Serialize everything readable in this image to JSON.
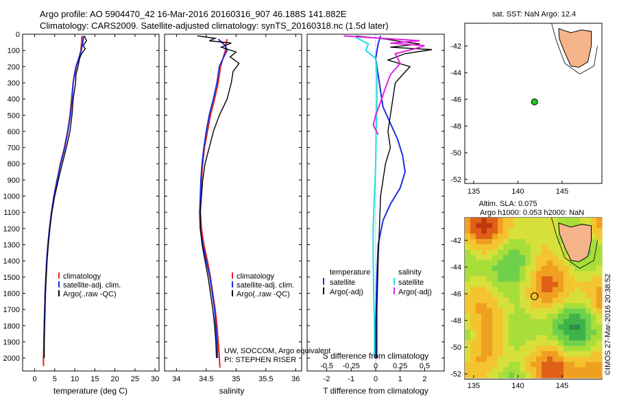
{
  "header": {
    "line1": "Argo profile: AO 5904470_42 16-Mar-2016 20160316_907 46.188S 141.882E",
    "line2": "Climatology: CARS2009. Satellite-adjusted climatology: synTS_20160318.nc (1.5d later)"
  },
  "colors": {
    "climatology": "#e8221a",
    "satellite": "#1a2de0",
    "argo": "#000000",
    "salinity_satellite": "#19e0e8",
    "salinity_argo": "#e020e0",
    "land": "#f5b48a",
    "float_marker": "#22c41e"
  },
  "chart_data": [
    {
      "type": "line",
      "name": "temperature-panel",
      "xlabel": "temperature (deg C)",
      "xticks": [
        "0",
        "5",
        "10",
        "15",
        "20",
        "25",
        "30"
      ],
      "xlim": [
        -3,
        31
      ],
      "ylim": [
        2080,
        0
      ],
      "yticks": [
        "0",
        "100",
        "200",
        "300",
        "400",
        "500",
        "600",
        "700",
        "800",
        "900",
        "1000",
        "1100",
        "1200",
        "1300",
        "1400",
        "1500",
        "1600",
        "1700",
        "1800",
        "1900",
        "2000"
      ],
      "legend": [
        "climatology",
        "satellite-adj. clim.",
        "Argo(..raw -QC)"
      ],
      "series": [
        {
          "name": "climatology",
          "color": "#e8221a",
          "points": [
            [
              11.8,
              10
            ],
            [
              11.7,
              50
            ],
            [
              11.5,
              100
            ],
            [
              11.0,
              150
            ],
            [
              10.4,
              200
            ],
            [
              10.0,
              250
            ],
            [
              9.6,
              300
            ],
            [
              9.2,
              400
            ],
            [
              8.8,
              500
            ],
            [
              8.2,
              600
            ],
            [
              7.4,
              700
            ],
            [
              6.4,
              800
            ],
            [
              5.6,
              900
            ],
            [
              4.8,
              1000
            ],
            [
              4.2,
              1100
            ],
            [
              3.7,
              1200
            ],
            [
              3.3,
              1300
            ],
            [
              3.0,
              1400
            ],
            [
              2.8,
              1500
            ],
            [
              2.6,
              1600
            ],
            [
              2.5,
              1700
            ],
            [
              2.4,
              1800
            ],
            [
              2.3,
              1900
            ],
            [
              2.2,
              2000
            ],
            [
              2.2,
              2050
            ]
          ]
        },
        {
          "name": "satellite",
          "color": "#1a2de0",
          "points": [
            [
              12.2,
              10
            ],
            [
              12.0,
              50
            ],
            [
              11.6,
              100
            ],
            [
              11.0,
              150
            ],
            [
              10.3,
              200
            ],
            [
              9.9,
              250
            ],
            [
              9.6,
              300
            ],
            [
              9.3,
              400
            ],
            [
              8.9,
              500
            ],
            [
              8.3,
              600
            ],
            [
              7.5,
              700
            ],
            [
              6.5,
              800
            ],
            [
              5.6,
              900
            ],
            [
              4.8,
              1000
            ],
            [
              4.2,
              1100
            ],
            [
              3.7,
              1200
            ],
            [
              3.3,
              1300
            ],
            [
              3.0,
              1400
            ],
            [
              2.8,
              1500
            ],
            [
              2.6,
              1600
            ],
            [
              2.5,
              1700
            ],
            [
              2.4,
              1800
            ],
            [
              2.3,
              1900
            ],
            [
              2.3,
              2000
            ]
          ]
        },
        {
          "name": "argo",
          "color": "#000000",
          "points": [
            [
              12.4,
              10
            ],
            [
              12.9,
              40
            ],
            [
              12.1,
              70
            ],
            [
              12.6,
              90
            ],
            [
              11.7,
              120
            ],
            [
              11.2,
              150
            ],
            [
              10.8,
              200
            ],
            [
              10.3,
              250
            ],
            [
              10.2,
              300
            ],
            [
              9.9,
              350
            ],
            [
              9.6,
              400
            ],
            [
              9.3,
              500
            ],
            [
              8.8,
              600
            ],
            [
              7.9,
              700
            ],
            [
              6.9,
              800
            ],
            [
              5.9,
              900
            ],
            [
              5.0,
              1000
            ],
            [
              4.3,
              1100
            ],
            [
              3.8,
              1200
            ],
            [
              3.4,
              1300
            ],
            [
              3.1,
              1400
            ],
            [
              2.9,
              1500
            ],
            [
              2.7,
              1600
            ],
            [
              2.6,
              1700
            ],
            [
              2.5,
              1800
            ],
            [
              2.4,
              1900
            ],
            [
              2.4,
              2000
            ]
          ]
        }
      ]
    },
    {
      "type": "line",
      "name": "salinity-panel",
      "xlabel": "salinity",
      "xticks": [
        "34",
        "34.5",
        "35",
        "35.5",
        "36"
      ],
      "xlim": [
        33.8,
        36.1
      ],
      "ylim": [
        2080,
        0
      ],
      "legend": [
        "climatology",
        "satellite-adj. clim.",
        "Argo(..raw -QC)"
      ],
      "annotation": [
        "UW, SOCCOM, Argo equivalent",
        "PI: STEPHEN RISER"
      ],
      "series": [
        {
          "name": "climatology",
          "color": "#e8221a",
          "points": [
            [
              34.85,
              30
            ],
            [
              34.83,
              60
            ],
            [
              34.82,
              100
            ],
            [
              34.78,
              150
            ],
            [
              34.74,
              200
            ],
            [
              34.7,
              300
            ],
            [
              34.64,
              400
            ],
            [
              34.57,
              500
            ],
            [
              34.52,
              600
            ],
            [
              34.47,
              700
            ],
            [
              34.44,
              800
            ],
            [
              34.42,
              900
            ],
            [
              34.41,
              1000
            ],
            [
              34.4,
              1100
            ],
            [
              34.42,
              1200
            ],
            [
              34.46,
              1300
            ],
            [
              34.52,
              1400
            ],
            [
              34.57,
              1500
            ],
            [
              34.61,
              1600
            ],
            [
              34.65,
              1700
            ],
            [
              34.68,
              1800
            ],
            [
              34.7,
              1900
            ],
            [
              34.72,
              2000
            ],
            [
              34.73,
              2060
            ]
          ]
        },
        {
          "name": "satellite",
          "color": "#1a2de0",
          "points": [
            [
              34.7,
              30
            ],
            [
              34.82,
              70
            ],
            [
              34.85,
              100
            ],
            [
              34.78,
              150
            ],
            [
              34.72,
              200
            ],
            [
              34.68,
              300
            ],
            [
              34.62,
              400
            ],
            [
              34.55,
              500
            ],
            [
              34.5,
              600
            ],
            [
              34.46,
              700
            ],
            [
              34.43,
              800
            ],
            [
              34.41,
              900
            ],
            [
              34.4,
              1000
            ],
            [
              34.39,
              1100
            ],
            [
              34.4,
              1200
            ],
            [
              34.44,
              1300
            ],
            [
              34.5,
              1400
            ],
            [
              34.56,
              1500
            ],
            [
              34.6,
              1600
            ],
            [
              34.64,
              1700
            ],
            [
              34.66,
              1800
            ],
            [
              34.68,
              1900
            ],
            [
              34.69,
              2000
            ]
          ]
        },
        {
          "name": "argo",
          "color": "#000000",
          "points": [
            [
              34.35,
              10
            ],
            [
              34.65,
              25
            ],
            [
              34.55,
              40
            ],
            [
              34.92,
              55
            ],
            [
              34.75,
              80
            ],
            [
              35.0,
              110
            ],
            [
              34.9,
              140
            ],
            [
              35.05,
              180
            ],
            [
              34.95,
              230
            ],
            [
              34.92,
              300
            ],
            [
              34.85,
              400
            ],
            [
              34.72,
              500
            ],
            [
              34.62,
              600
            ],
            [
              34.55,
              700
            ],
            [
              34.48,
              800
            ],
            [
              34.44,
              900
            ],
            [
              34.42,
              1000
            ],
            [
              34.4,
              1100
            ],
            [
              34.4,
              1200
            ],
            [
              34.43,
              1300
            ],
            [
              34.48,
              1400
            ],
            [
              34.53,
              1500
            ],
            [
              34.57,
              1600
            ],
            [
              34.61,
              1700
            ],
            [
              34.64,
              1800
            ],
            [
              34.66,
              1900
            ],
            [
              34.67,
              2000
            ]
          ]
        }
      ]
    },
    {
      "type": "line",
      "name": "difference-panel",
      "xlabel": "T difference from climatology",
      "xlabel_top": "S difference from climatology",
      "xticks": [
        "-2",
        "-1",
        "0",
        "1",
        "2"
      ],
      "xticks_top": [
        "-0.5",
        "-0.25",
        "0",
        "0.25",
        "0.5"
      ],
      "xlim": [
        -2.8,
        2.8
      ],
      "ylim": [
        2080,
        0
      ],
      "legend_headers": [
        "temperature",
        "salinity"
      ],
      "legend": [
        "satellite",
        "Argo(-adj)",
        "satellite",
        "Argo(-adj)"
      ],
      "series": [
        {
          "name": "T satellite",
          "color": "#1a2de0",
          "points": [
            [
              0.2,
              10
            ],
            [
              0.1,
              60
            ],
            [
              0.0,
              150
            ],
            [
              0.1,
              250
            ],
            [
              0.2,
              350
            ],
            [
              0.3,
              450
            ],
            [
              0.6,
              550
            ],
            [
              0.9,
              650
            ],
            [
              1.1,
              750
            ],
            [
              1.2,
              850
            ],
            [
              1.0,
              950
            ],
            [
              0.6,
              1050
            ],
            [
              0.3,
              1150
            ],
            [
              0.1,
              1300
            ],
            [
              0.05,
              1500
            ],
            [
              0.0,
              1800
            ],
            [
              0.0,
              2000
            ]
          ]
        },
        {
          "name": "T argo",
          "color": "#000000",
          "points": [
            [
              -0.8,
              10
            ],
            [
              0.4,
              30
            ],
            [
              1.0,
              45
            ],
            [
              1.8,
              60
            ],
            [
              0.6,
              80
            ],
            [
              2.3,
              95
            ],
            [
              1.2,
              120
            ],
            [
              0.5,
              160
            ],
            [
              1.4,
              200
            ],
            [
              1.1,
              250
            ],
            [
              0.8,
              300
            ],
            [
              0.7,
              400
            ],
            [
              0.6,
              500
            ],
            [
              0.5,
              600
            ],
            [
              0.6,
              700
            ],
            [
              0.4,
              800
            ],
            [
              0.3,
              900
            ],
            [
              0.2,
              1000
            ],
            [
              0.15,
              1200
            ],
            [
              0.1,
              1400
            ],
            [
              0.05,
              1700
            ],
            [
              0.05,
              2000
            ]
          ]
        },
        {
          "name": "S satellite",
          "color": "#19e0e8",
          "points": [
            [
              -0.8,
              20
            ],
            [
              -0.3,
              60
            ],
            [
              -0.4,
              100
            ],
            [
              0.0,
              150
            ],
            [
              0.05,
              250
            ],
            [
              0.05,
              400
            ],
            [
              0.02,
              600
            ],
            [
              0.0,
              800
            ],
            [
              -0.05,
              1000
            ],
            [
              -0.1,
              1200
            ],
            [
              -0.1,
              1400
            ],
            [
              -0.08,
              1600
            ],
            [
              -0.05,
              1800
            ],
            [
              -0.05,
              2000
            ]
          ]
        },
        {
          "name": "S argo",
          "color": "#e020e0",
          "points": [
            [
              -1.3,
              10
            ],
            [
              1.8,
              40
            ],
            [
              0.6,
              55
            ],
            [
              2.0,
              70
            ],
            [
              1.6,
              90
            ],
            [
              0.8,
              120
            ],
            [
              1.0,
              180
            ],
            [
              0.6,
              250
            ],
            [
              0.4,
              330
            ],
            [
              0.2,
              420
            ],
            [
              0.0,
              500
            ],
            [
              -0.1,
              560
            ],
            [
              0.1,
              620
            ]
          ]
        }
      ]
    },
    {
      "type": "scatter",
      "name": "sst-map",
      "title": "sat. SST: NaN Argo: 12.4",
      "xticks": [
        "135",
        "140",
        "145"
      ],
      "yticks": [
        "-42",
        "-44",
        "-46",
        "-48",
        "-50",
        "-52"
      ],
      "xlim": [
        134,
        149.5
      ],
      "ylim": [
        -40.3,
        -52.3
      ],
      "float_position": [
        141.88,
        -46.19
      ]
    },
    {
      "type": "heatmap",
      "name": "sla-map",
      "title": "Altim. SLA: 0.075",
      "subtitle": "Argo h1000: 0.053 h2000: NaN",
      "xticks": [
        "135",
        "140",
        "145"
      ],
      "yticks": [
        "-42",
        "-44",
        "-46",
        "-48",
        "-50",
        "-52"
      ],
      "xlim": [
        134,
        149.5
      ],
      "ylim": [
        -40.3,
        -52.3
      ],
      "float_position": [
        141.88,
        -46.19
      ],
      "side_label": "©IMOS 27-Mar-2016 20:38:52"
    }
  ]
}
